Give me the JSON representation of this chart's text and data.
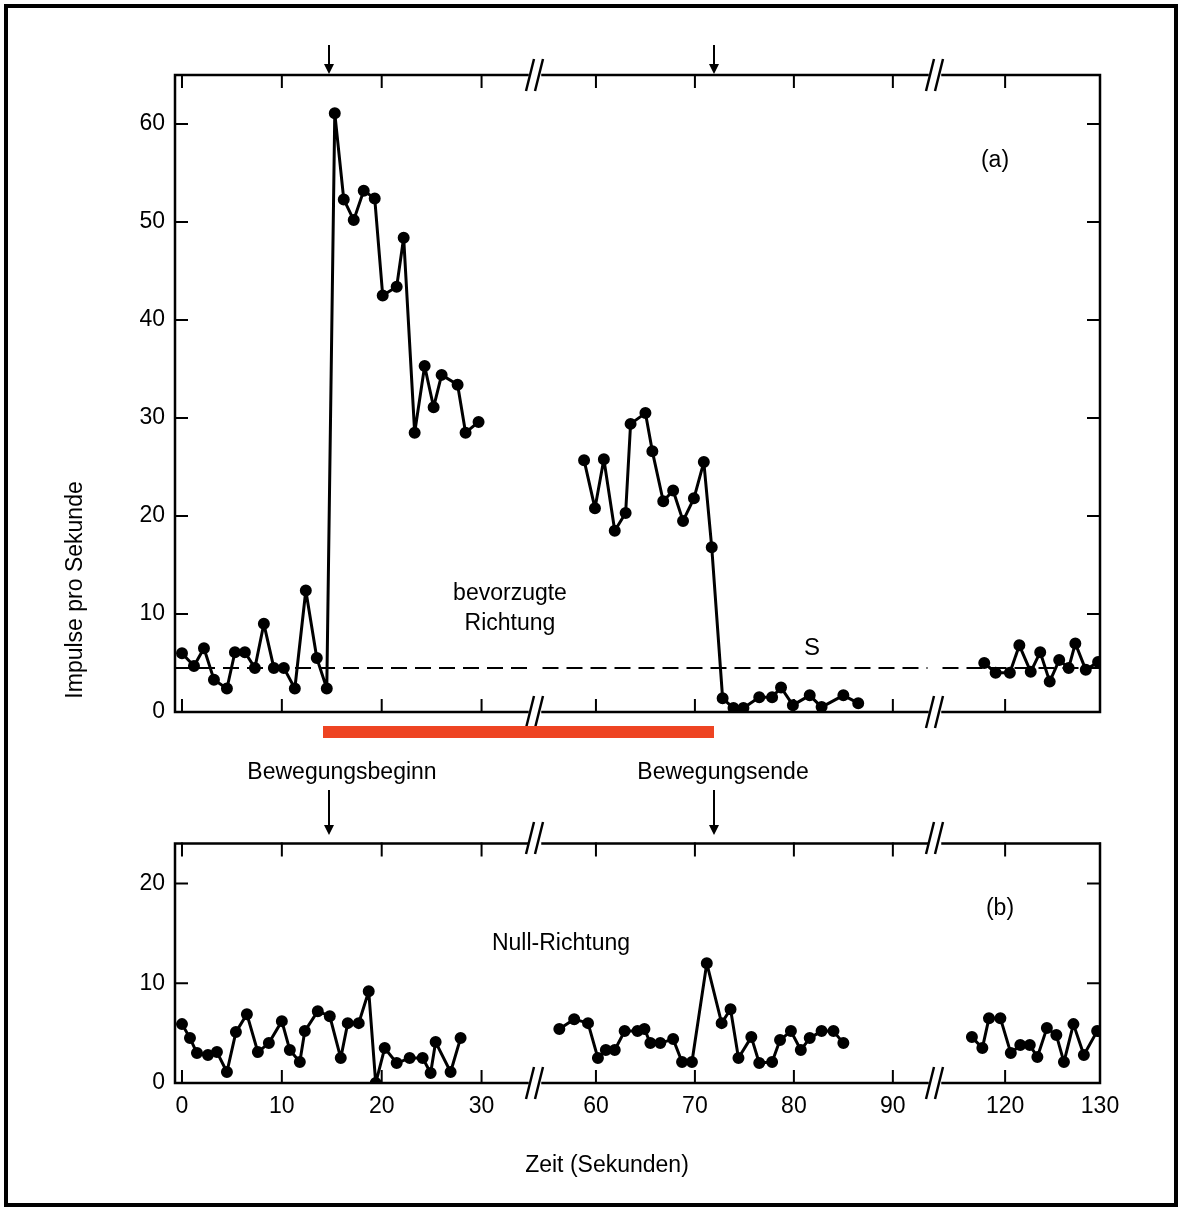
{
  "chart_data": [
    {
      "type": "line",
      "ylabel": "Impulse pro Sekunde",
      "x": [
        0,
        1.2,
        2.2,
        3.2,
        4.5,
        5.3,
        6.3,
        7.3,
        8.2,
        9.2,
        10.2,
        11.3,
        12.4,
        13.5,
        14.5,
        15.3,
        16.2,
        17.2,
        18.2,
        19.3,
        20.1,
        21.5,
        22.2,
        23.3,
        24.3,
        25.2,
        26,
        27.6,
        28.4,
        29.7
      ],
      "series": [
        {
          "color": "#000000",
          "values": [
            6,
            4.7,
            6.5,
            3.3,
            2.4,
            6.1,
            6.1,
            4.5,
            9,
            4.5,
            4.5,
            2.4,
            12.4,
            5.5,
            2.4,
            61.1,
            52.3,
            50.2,
            53.2,
            52.4,
            42.5,
            43.4,
            48.4,
            28.5,
            35.3,
            31.1,
            34.4,
            33.4,
            28.5,
            29.6
          ]
        }
      ],
      "xlim": [
        -0.7,
        34.6
      ],
      "xticks": [
        0,
        10,
        20,
        30
      ],
      "ylim": [
        0,
        65
      ],
      "yticks": [
        0,
        10,
        20,
        30,
        40,
        50,
        60
      ],
      "tick_labels": "y",
      "marker": "circle",
      "ref_lines": [
        {
          "axis": "y",
          "value": 4.5,
          "line_style": "dashed",
          "color": "#000000"
        }
      ],
      "annotations": [
        "bevorzugte Richtung",
        "Bewegungsbeginn"
      ]
    },
    {
      "type": "line",
      "x": [
        58.8,
        59.9,
        60.8,
        61.9,
        63,
        63.5,
        65,
        65.7,
        66.8,
        67.8,
        68.8,
        69.9,
        70.9,
        71.7,
        72.8,
        73.9,
        74.9,
        76.5,
        77.8,
        78.7,
        79.9,
        81.6,
        82.8,
        85,
        86.5
      ],
      "series": [
        {
          "color": "#000000",
          "values": [
            25.7,
            20.8,
            25.8,
            18.5,
            20.3,
            29.4,
            30.5,
            26.6,
            21.5,
            22.6,
            19.5,
            21.8,
            25.5,
            16.8,
            1.4,
            0.4,
            0.4,
            1.5,
            1.5,
            2.5,
            0.7,
            1.7,
            0.5,
            1.7,
            0.9
          ]
        }
      ],
      "xlim": [
        54.6,
        93.5
      ],
      "xticks": [
        60,
        70,
        80,
        90
      ],
      "ylim": [
        0,
        65
      ],
      "yticks": [
        0,
        10,
        20,
        30,
        40,
        50,
        60
      ],
      "tick_labels": false,
      "marker": "circle",
      "ref_lines": [
        {
          "axis": "y",
          "value": 4.5,
          "label": "S",
          "line_style": "dashed",
          "color": "#000000"
        }
      ],
      "annotations": [
        "Bewegungsende"
      ]
    },
    {
      "type": "line",
      "x": [
        117.8,
        119,
        120.5,
        121.5,
        122.7,
        123.7,
        124.7,
        125.7,
        126.7,
        127.4,
        128.5,
        129.8
      ],
      "series": [
        {
          "color": "#000000",
          "values": [
            5,
            4,
            4,
            6.8,
            4.1,
            6.1,
            3.1,
            5.3,
            4.5,
            7,
            4.3,
            5.1
          ]
        }
      ],
      "xlim": [
        113.4,
        130
      ],
      "xticks": [
        120,
        130
      ],
      "ylim": [
        0,
        65
      ],
      "yticks": [
        0,
        10,
        20,
        30,
        40,
        50,
        60
      ],
      "tick_labels": false,
      "marker": "circle",
      "ref_lines": [
        {
          "axis": "y",
          "value": 4.5,
          "line_style": "dashed",
          "color": "#000000"
        }
      ],
      "annotations": [
        "(a)"
      ]
    },
    {
      "type": "line",
      "x": [
        0,
        0.8,
        1.5,
        2.6,
        3.5,
        4.5,
        5.4,
        6.5,
        7.6,
        8.7,
        10,
        10.8,
        11.8,
        12.3,
        13.6,
        14.8,
        15.9,
        16.6,
        17.7,
        18.7,
        19.4,
        20.3,
        21.5,
        22.8,
        24.1,
        24.9,
        25.4,
        26.9,
        27.9
      ],
      "series": [
        {
          "color": "#000000",
          "values": [
            5.9,
            4.5,
            3,
            2.8,
            3.1,
            1.1,
            5.1,
            6.9,
            3.1,
            4,
            6.2,
            3.3,
            2.1,
            5.2,
            7.2,
            6.7,
            2.5,
            6,
            6,
            9.2,
            0,
            3.5,
            2,
            2.5,
            2.5,
            1,
            4.1,
            1.1,
            4.5
          ]
        }
      ],
      "xlim": [
        -0.7,
        34.6
      ],
      "xticks": [
        0,
        10,
        20,
        30
      ],
      "ylim": [
        0,
        24
      ],
      "yticks": [
        0,
        10,
        20
      ],
      "marker": "circle",
      "annotations": [
        "Null-Richtung"
      ]
    },
    {
      "type": "line",
      "xlabel": "Zeit (Sekunden)",
      "x": [
        56.3,
        57.8,
        59.2,
        60.2,
        61,
        61.9,
        62.9,
        64.2,
        64.9,
        65.5,
        66.5,
        67.8,
        68.7,
        69.7,
        71.2,
        72.7,
        73.6,
        74.4,
        75.7,
        76.5,
        77.8,
        78.6,
        79.7,
        80.7,
        81.6,
        82.8,
        84,
        85
      ],
      "series": [
        {
          "color": "#000000",
          "values": [
            5.4,
            6.4,
            6,
            2.5,
            3.3,
            3.3,
            5.2,
            5.2,
            5.4,
            4,
            4,
            4.4,
            2.1,
            2.1,
            12,
            6,
            7.4,
            2.5,
            4.6,
            2,
            2.1,
            4.3,
            5.2,
            3.3,
            4.5,
            5.2,
            5.2,
            4
          ]
        }
      ],
      "xlim": [
        54.6,
        93.5
      ],
      "xticks": [
        60,
        70,
        80,
        90
      ],
      "ylim": [
        0,
        24
      ],
      "yticks": [
        0,
        10,
        20
      ],
      "tick_labels": "x",
      "marker": "circle"
    },
    {
      "type": "line",
      "x": [
        116.5,
        117.6,
        118.3,
        119.5,
        120.6,
        121.6,
        122.6,
        123.4,
        124.4,
        125.4,
        126.2,
        127.2,
        128.3,
        129.7
      ],
      "series": [
        {
          "color": "#000000",
          "values": [
            4.6,
            3.5,
            6.5,
            6.5,
            3,
            3.8,
            3.8,
            2.6,
            5.5,
            4.8,
            2.1,
            5.9,
            2.8,
            5.2
          ]
        }
      ],
      "xlim": [
        113.4,
        130
      ],
      "xticks": [
        120,
        130
      ],
      "ylim": [
        0,
        24
      ],
      "yticks": [
        0,
        10,
        20
      ],
      "tick_labels": "x",
      "marker": "circle",
      "annotations": [
        "(b)"
      ]
    }
  ]
}
